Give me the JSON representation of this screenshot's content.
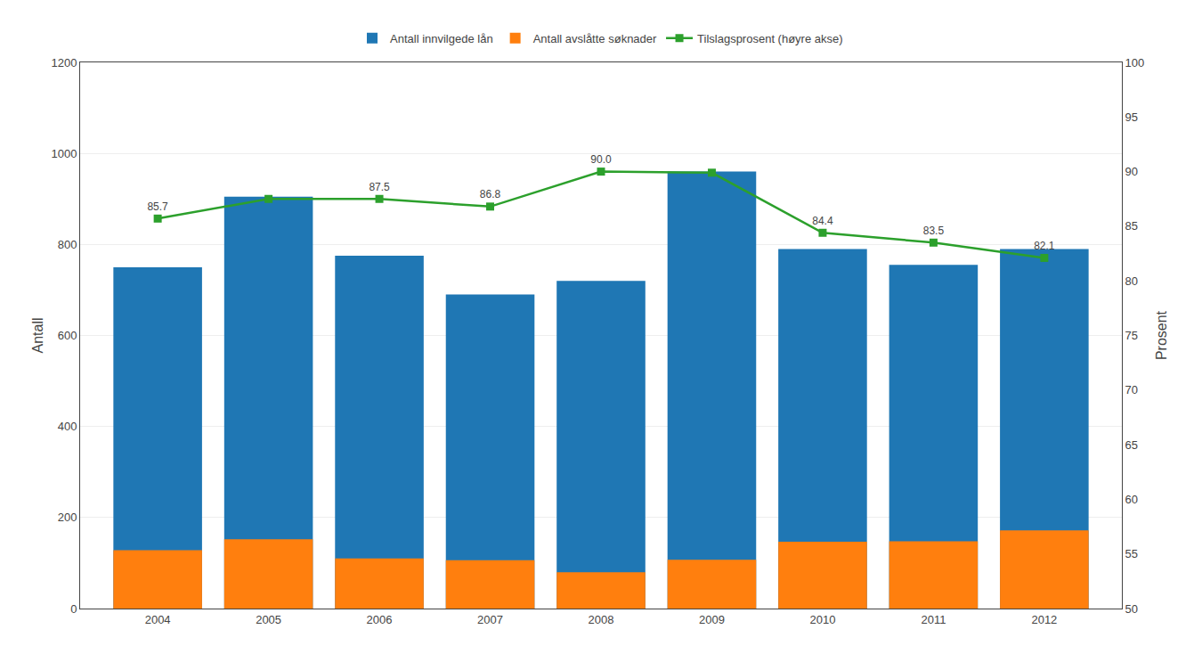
{
  "chart_data": {
    "type": "bar",
    "x": [
      2004,
      2005,
      2006,
      2007,
      2008,
      2009,
      2010,
      2011,
      2012
    ],
    "xlim": [
      2003.3,
      2012.7
    ],
    "xticks": [
      2004,
      2005,
      2006,
      2007,
      2008,
      2009,
      2010,
      2011,
      2012
    ],
    "ylabel": "Antall",
    "y2label": "Prosent",
    "ylim": [
      0,
      1200
    ],
    "yticks": [
      0,
      200,
      400,
      600,
      800,
      1000,
      1200
    ],
    "y2lim": [
      50.0,
      100.0
    ],
    "y2ticks": [
      50.0,
      55.0,
      60.0,
      65.0,
      70.0,
      75.0,
      80.0,
      85.0,
      90.0,
      95.0,
      100.0
    ],
    "grid": "y",
    "legend": "top",
    "series": [
      {
        "name": "Antall innvilgede lån",
        "type": "bar",
        "values": [
          750,
          905,
          775,
          690,
          720,
          960,
          790,
          755,
          790
        ]
      },
      {
        "name": "Antall avslåtte søknader",
        "type": "bar",
        "values": [
          128,
          152,
          110,
          106,
          80,
          107,
          147,
          148,
          172
        ]
      },
      {
        "name": "Tilslagsprosent (høyre akse)",
        "type": "line",
        "axis": "y2",
        "marker": "square",
        "data_labels": true,
        "values": [
          85.7,
          87.5,
          87.5,
          86.8,
          90.0,
          89.9,
          84.4,
          83.5,
          82.1
        ],
        "value_labels": [
          "85.7",
          null,
          "87.5",
          "86.8",
          "90.0",
          null,
          "84.4",
          "83.5",
          "82.1"
        ]
      }
    ]
  }
}
